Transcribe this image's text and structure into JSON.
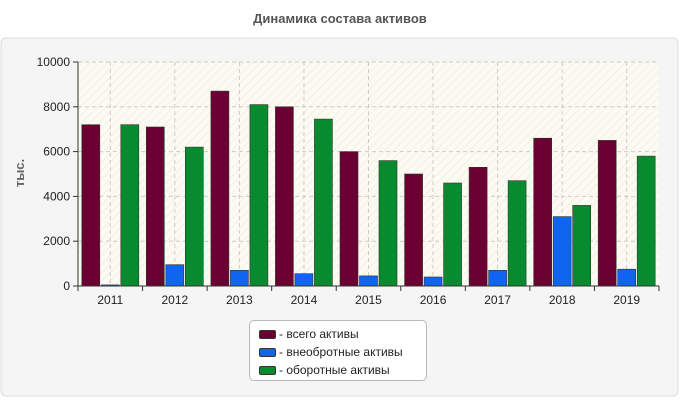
{
  "chart_data": {
    "type": "bar",
    "title": "Динамика состава активов",
    "xlabel": "",
    "ylabel": "тыс.",
    "ylim": [
      0,
      10000
    ],
    "yticks": [
      "0",
      "2000",
      "4000",
      "6000",
      "8000",
      "10000"
    ],
    "ytick_values": [
      0,
      2000,
      4000,
      6000,
      8000,
      10000
    ],
    "categories": [
      "2011",
      "2012",
      "2013",
      "2014",
      "2015",
      "2016",
      "2017",
      "2018",
      "2019"
    ],
    "series": [
      {
        "name": "- всего активы",
        "color": "#6b0033",
        "values": [
          7200,
          7100,
          8700,
          8000,
          6000,
          5000,
          5300,
          6600,
          6500
        ]
      },
      {
        "name": "- внеобротные активы",
        "color": "#0f64f0",
        "values": [
          50,
          950,
          700,
          550,
          450,
          400,
          700,
          3100,
          750
        ]
      },
      {
        "name": "- оборотные активы",
        "color": "#088a2e",
        "values": [
          7200,
          6200,
          8100,
          7450,
          5600,
          4600,
          4700,
          3600,
          5800
        ]
      }
    ],
    "grid": true,
    "legend_position": "bottom-center"
  }
}
